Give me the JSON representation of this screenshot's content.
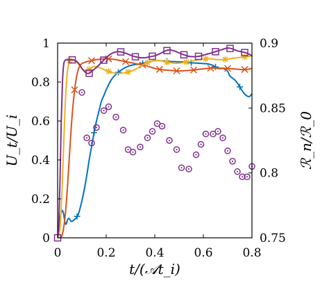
{
  "chart_data": {
    "type": "line",
    "title": "",
    "xlabel": "t/(𝒜t_i)",
    "ylabel_left": "U_t/U_i",
    "ylabel_right": "ℛ_n/ℛ_0",
    "xlim": [
      0,
      0.8
    ],
    "ylim_left": [
      0,
      1
    ],
    "ylim_right": [
      0.75,
      0.9
    ],
    "xticks": [
      "0",
      "0.2",
      "0.4",
      "0.6",
      "0.8"
    ],
    "yticks_left": [
      "0",
      "0.2",
      "0.4",
      "0.6",
      "0.8",
      "1"
    ],
    "yticks_right": [
      "0.75",
      "0.8",
      "0.85",
      "0.9"
    ],
    "grid": false,
    "legend": "none",
    "series": [
      {
        "color": "#0072BD",
        "marker": "plus",
        "axis": "left",
        "x": [
          0,
          0.005,
          0.01,
          0.015,
          0.02,
          0.025,
          0.03,
          0.035,
          0.04,
          0.045,
          0.05,
          0.055,
          0.06,
          0.065,
          0.07,
          0.075,
          0.08,
          0.085,
          0.09,
          0.1,
          0.11,
          0.12,
          0.13,
          0.14,
          0.15,
          0.16,
          0.17,
          0.18,
          0.19,
          0.2,
          0.22,
          0.24,
          0.26,
          0.28,
          0.3,
          0.32,
          0.34,
          0.36,
          0.38,
          0.4,
          0.42,
          0.44,
          0.46,
          0.48,
          0.5,
          0.52,
          0.54,
          0.56,
          0.58,
          0.6,
          0.62,
          0.64,
          0.66,
          0.68,
          0.69,
          0.7,
          0.71,
          0.72,
          0.73,
          0.74,
          0.75,
          0.76,
          0.77,
          0.78,
          0.79,
          0.8
        ],
        "y": [
          0.0,
          0.04,
          0.1,
          0.13,
          0.14,
          0.12,
          0.08,
          0.07,
          0.09,
          0.1,
          0.095,
          0.085,
          0.085,
          0.09,
          0.095,
          0.1,
          0.11,
          0.12,
          0.14,
          0.19,
          0.25,
          0.32,
          0.4,
          0.47,
          0.54,
          0.6,
          0.65,
          0.7,
          0.73,
          0.76,
          0.81,
          0.84,
          0.86,
          0.875,
          0.885,
          0.89,
          0.893,
          0.9,
          0.905,
          0.91,
          0.91,
          0.908,
          0.906,
          0.905,
          0.904,
          0.903,
          0.9,
          0.898,
          0.897,
          0.895,
          0.893,
          0.885,
          0.87,
          0.87,
          0.865,
          0.855,
          0.83,
          0.82,
          0.81,
          0.795,
          0.775,
          0.755,
          0.738,
          0.728,
          0.726,
          0.74
        ],
        "marker_x": [
          0.08,
          0.15,
          0.25,
          0.35,
          0.45,
          0.55,
          0.65,
          0.75
        ]
      },
      {
        "color": "#D95319",
        "marker": "x",
        "axis": "left",
        "x": [
          0,
          0.01,
          0.02,
          0.03,
          0.04,
          0.05,
          0.06,
          0.07,
          0.08,
          0.09,
          0.1,
          0.11,
          0.12,
          0.14,
          0.16,
          0.18,
          0.2,
          0.22,
          0.24,
          0.26,
          0.28,
          0.3,
          0.32,
          0.34,
          0.36,
          0.38,
          0.4,
          0.42,
          0.44,
          0.46,
          0.48,
          0.5,
          0.52,
          0.54,
          0.56,
          0.58,
          0.6,
          0.62,
          0.64,
          0.66,
          0.68,
          0.7,
          0.72,
          0.74,
          0.76,
          0.78,
          0.8
        ],
        "y": [
          0.0,
          0.0,
          0.02,
          0.1,
          0.25,
          0.45,
          0.63,
          0.76,
          0.84,
          0.88,
          0.895,
          0.9,
          0.905,
          0.91,
          0.915,
          0.918,
          0.92,
          0.918,
          0.915,
          0.91,
          0.905,
          0.9,
          0.895,
          0.89,
          0.885,
          0.878,
          0.87,
          0.865,
          0.862,
          0.86,
          0.858,
          0.857,
          0.858,
          0.86,
          0.862,
          0.865,
          0.868,
          0.87,
          0.872,
          0.872,
          0.871,
          0.87,
          0.868,
          0.866,
          0.864,
          0.865,
          0.87
        ],
        "marker_x": [
          0.07,
          0.14,
          0.21,
          0.28,
          0.35,
          0.42,
          0.49,
          0.56,
          0.63,
          0.7,
          0.77
        ]
      },
      {
        "color": "#EDB120",
        "marker": "star",
        "axis": "left",
        "x": [
          0,
          0.01,
          0.02,
          0.03,
          0.04,
          0.05,
          0.06,
          0.07,
          0.08,
          0.09,
          0.1,
          0.11,
          0.12,
          0.13,
          0.14,
          0.16,
          0.18,
          0.2,
          0.22,
          0.24,
          0.26,
          0.28,
          0.3,
          0.32,
          0.34,
          0.36,
          0.38,
          0.4,
          0.42,
          0.44,
          0.46,
          0.48,
          0.5,
          0.52,
          0.54,
          0.56,
          0.58,
          0.6,
          0.62,
          0.64,
          0.66,
          0.68,
          0.7,
          0.72,
          0.74,
          0.76,
          0.78,
          0.8
        ],
        "y": [
          0.0,
          0.05,
          0.3,
          0.65,
          0.85,
          0.91,
          0.915,
          0.91,
          0.9,
          0.885,
          0.87,
          0.86,
          0.86,
          0.865,
          0.875,
          0.88,
          0.87,
          0.86,
          0.85,
          0.845,
          0.845,
          0.848,
          0.855,
          0.865,
          0.88,
          0.895,
          0.905,
          0.91,
          0.91,
          0.905,
          0.9,
          0.897,
          0.897,
          0.9,
          0.905,
          0.91,
          0.915,
          0.918,
          0.92,
          0.918,
          0.915,
          0.915,
          0.918,
          0.922,
          0.925,
          0.928,
          0.93,
          0.935
        ],
        "marker_x": [
          0.05,
          0.13,
          0.21,
          0.29,
          0.37,
          0.45,
          0.53,
          0.61,
          0.69,
          0.77
        ]
      },
      {
        "color": "#7E2F8E",
        "marker": "square",
        "axis": "left",
        "x": [
          0,
          0.005,
          0.01,
          0.015,
          0.02,
          0.025,
          0.03,
          0.035,
          0.04,
          0.05,
          0.06,
          0.07,
          0.08,
          0.09,
          0.1,
          0.11,
          0.12,
          0.13,
          0.14,
          0.16,
          0.18,
          0.2,
          0.22,
          0.24,
          0.26,
          0.28,
          0.3,
          0.32,
          0.34,
          0.36,
          0.38,
          0.4,
          0.42,
          0.44,
          0.46,
          0.48,
          0.5,
          0.52,
          0.54,
          0.56,
          0.58,
          0.6,
          0.62,
          0.64,
          0.66,
          0.68,
          0.7,
          0.72,
          0.74,
          0.76,
          0.78,
          0.8
        ],
        "y": [
          0.0,
          0.08,
          0.3,
          0.6,
          0.8,
          0.89,
          0.91,
          0.915,
          0.915,
          0.915,
          0.914,
          0.912,
          0.905,
          0.89,
          0.87,
          0.855,
          0.845,
          0.845,
          0.855,
          0.875,
          0.9,
          0.925,
          0.945,
          0.955,
          0.955,
          0.948,
          0.938,
          0.93,
          0.925,
          0.925,
          0.93,
          0.935,
          0.945,
          0.958,
          0.965,
          0.96,
          0.95,
          0.94,
          0.932,
          0.93,
          0.932,
          0.938,
          0.945,
          0.952,
          0.96,
          0.968,
          0.975,
          0.97,
          0.96,
          0.955,
          0.948,
          0.935
        ],
        "marker_x": [
          0.0,
          0.06,
          0.13,
          0.19,
          0.26,
          0.32,
          0.39,
          0.45,
          0.52,
          0.58,
          0.65,
          0.71,
          0.77
        ]
      }
    ],
    "scatter": {
      "color": "#7E2F8E",
      "marker": "dotted-circle",
      "axis": "right",
      "x": [
        0.1,
        0.12,
        0.14,
        0.16,
        0.19,
        0.21,
        0.24,
        0.27,
        0.29,
        0.31,
        0.34,
        0.37,
        0.39,
        0.41,
        0.43,
        0.46,
        0.49,
        0.51,
        0.54,
        0.57,
        0.59,
        0.61,
        0.64,
        0.66,
        0.68,
        0.7,
        0.72,
        0.74,
        0.76,
        0.78,
        0.8
      ],
      "y": [
        0.862,
        0.827,
        0.823,
        0.835,
        0.848,
        0.851,
        0.843,
        0.833,
        0.818,
        0.816,
        0.82,
        0.827,
        0.832,
        0.838,
        0.836,
        0.825,
        0.818,
        0.804,
        0.803,
        0.814,
        0.822,
        0.83,
        0.83,
        0.832,
        0.827,
        0.817,
        0.809,
        0.801,
        0.797,
        0.797,
        0.805
      ]
    }
  }
}
